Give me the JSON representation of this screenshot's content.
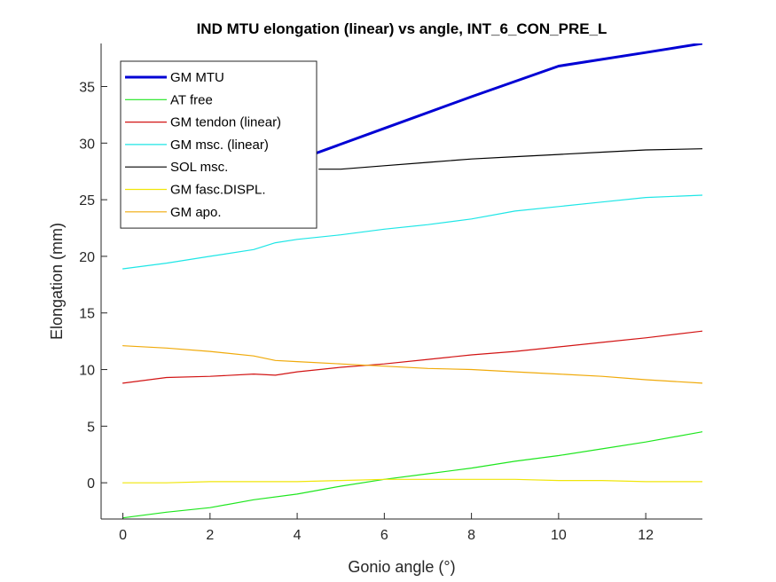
{
  "chart_data": {
    "type": "line",
    "title": "IND MTU elongation (linear) vs angle, INT_6_CON_PRE_L",
    "xlabel": "Gonio angle (°)",
    "ylabel": "Elongation (mm)",
    "xlim": [
      -0.5,
      13.3
    ],
    "ylim": [
      -3.2,
      38.8
    ],
    "xticks": [
      0,
      2,
      4,
      6,
      8,
      10,
      12
    ],
    "yticks": [
      0,
      5,
      10,
      15,
      20,
      25,
      30,
      35
    ],
    "grid": false,
    "legend_position": "top-left",
    "series": [
      {
        "name": "GM MTU",
        "color": "#0000d4",
        "width": 3,
        "x": [
          0,
          2,
          4,
          6,
          8,
          10,
          12,
          13.3
        ],
        "y": [
          23.0,
          25.6,
          28.5,
          31.3,
          34.1,
          36.8,
          38.0,
          38.8
        ]
      },
      {
        "name": "AT free",
        "color": "#1ee61e",
        "width": 1.2,
        "x": [
          0,
          1,
          2,
          3,
          4,
          5,
          6,
          7,
          8,
          9,
          10,
          11,
          12,
          13.3
        ],
        "y": [
          -3.1,
          -2.6,
          -2.2,
          -1.5,
          -1.0,
          -0.3,
          0.3,
          0.8,
          1.3,
          1.9,
          2.4,
          3.0,
          3.6,
          4.5
        ]
      },
      {
        "name": "GM tendon (linear)",
        "color": "#d21414",
        "width": 1.2,
        "x": [
          0,
          1,
          2,
          3,
          3.5,
          4,
          5,
          6,
          7,
          8,
          9,
          10,
          11,
          12,
          13.3
        ],
        "y": [
          8.8,
          9.3,
          9.4,
          9.6,
          9.5,
          9.8,
          10.2,
          10.5,
          10.9,
          11.3,
          11.6,
          12.0,
          12.4,
          12.8,
          13.4
        ]
      },
      {
        "name": "GM msc. (linear)",
        "color": "#1ee6e6",
        "width": 1.2,
        "x": [
          0,
          1,
          2,
          3,
          3.5,
          4,
          5,
          6,
          7,
          8,
          9,
          10,
          11,
          12,
          13.3
        ],
        "y": [
          18.9,
          19.4,
          20.0,
          20.6,
          21.2,
          21.5,
          21.9,
          22.4,
          22.8,
          23.3,
          24.0,
          24.4,
          24.8,
          25.2,
          25.4
        ]
      },
      {
        "name": "SOL msc.",
        "color": "#000000",
        "width": 1.2,
        "x": [
          4.5,
          5,
          6,
          7,
          8,
          9,
          10,
          11,
          12,
          13.3
        ],
        "y": [
          27.7,
          27.7,
          28.0,
          28.3,
          28.6,
          28.8,
          29.0,
          29.2,
          29.4,
          29.5
        ]
      },
      {
        "name": "GM fasc.DISPL.",
        "color": "#f0e60a",
        "width": 1.2,
        "x": [
          0,
          1,
          2,
          3,
          4,
          5,
          6,
          7,
          8,
          9,
          10,
          11,
          12,
          13.3
        ],
        "y": [
          0.0,
          0.0,
          0.1,
          0.1,
          0.1,
          0.2,
          0.3,
          0.3,
          0.3,
          0.3,
          0.2,
          0.2,
          0.1,
          0.1
        ]
      },
      {
        "name": "GM apo.",
        "color": "#f0aa0a",
        "width": 1.2,
        "x": [
          0,
          1,
          2,
          3,
          3.5,
          4,
          5,
          6,
          7,
          8,
          9,
          10,
          11,
          12,
          13.3
        ],
        "y": [
          12.1,
          11.9,
          11.6,
          11.2,
          10.8,
          10.7,
          10.5,
          10.3,
          10.1,
          10.0,
          9.8,
          9.6,
          9.4,
          9.1,
          8.8
        ]
      }
    ]
  }
}
